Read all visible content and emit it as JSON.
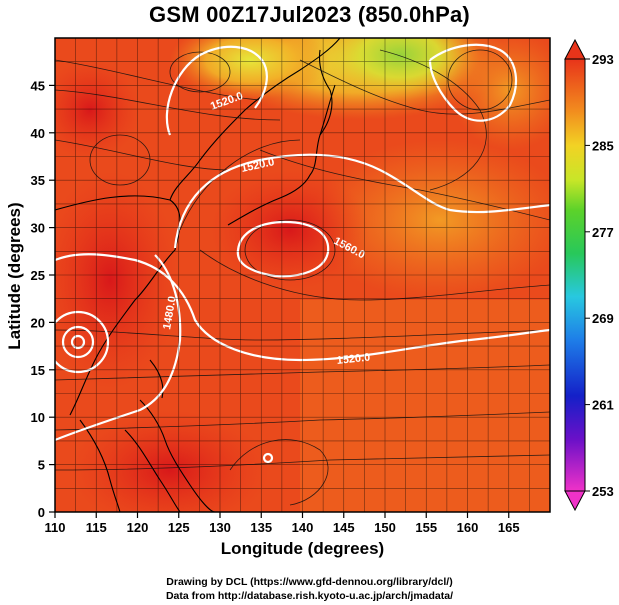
{
  "title": "GSM 00Z17Jul2023 (850.0hPa)",
  "xaxis": {
    "label": "Longitude (degrees)",
    "ticks": [
      "110",
      "115",
      "120",
      "125",
      "130",
      "135",
      "140",
      "145",
      "150",
      "155",
      "160",
      "165"
    ],
    "range": [
      110,
      170
    ]
  },
  "yaxis": {
    "label": "Latitude  (degrees)",
    "ticks": [
      "0",
      "5",
      "10",
      "15",
      "20",
      "25",
      "30",
      "35",
      "40",
      "45"
    ],
    "range": [
      0,
      50
    ]
  },
  "colorbar": {
    "ticks": [
      "293",
      "285",
      "277",
      "269",
      "261",
      "253"
    ],
    "range": [
      253,
      293
    ]
  },
  "contours": {
    "labels": [
      "1520.0",
      "1560.0",
      "1520.0",
      "1520.0",
      "1480.0"
    ]
  },
  "colors": {
    "warm": "#e8341a",
    "hot": "#d9201a",
    "orange": "#f07d1f",
    "yellow": "#f2e04a",
    "green": "#8ccd3a"
  },
  "credits": {
    "line1": "Drawing by DCL (https://www.gfd-dennou.org/library/dcl/)",
    "line2": "Data from http://database.rish.kyoto-u.ac.jp/arch/jmadata/"
  }
}
